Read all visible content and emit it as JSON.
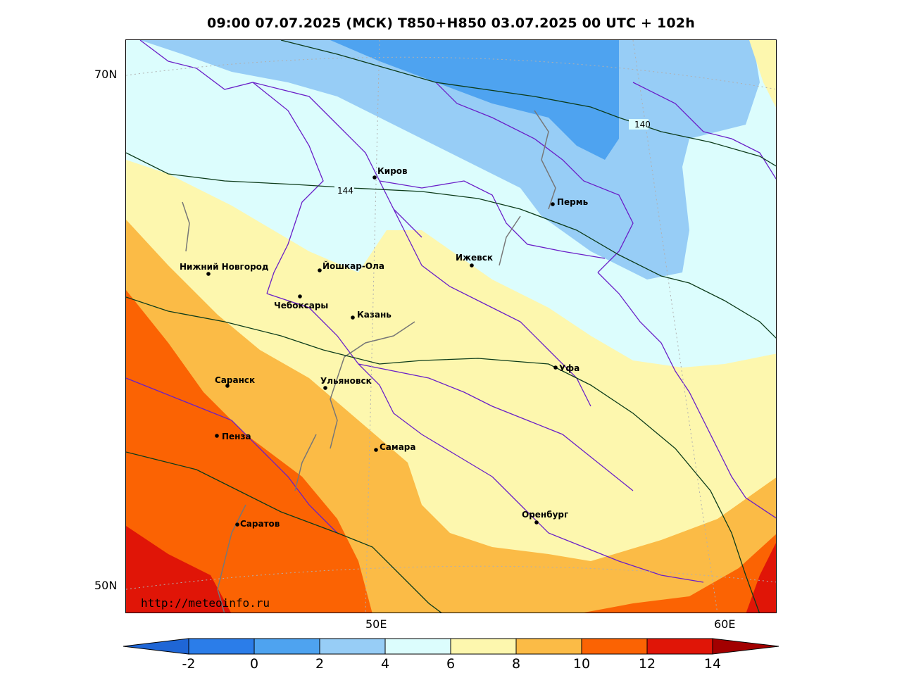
{
  "title": "09:00 07.07.2025 (МСК) T850+H850 03.07.2025 00 UTC + 102h",
  "axes": {
    "lat_labels": [
      "70N",
      "50N"
    ],
    "lon_labels": [
      "50E",
      "60E"
    ]
  },
  "cities": [
    {
      "name": "Киров"
    },
    {
      "name": "Пермь"
    },
    {
      "name": "Нижний Новгород"
    },
    {
      "name": "Йошкар-Ола"
    },
    {
      "name": "Ижевск"
    },
    {
      "name": "Чебоксары"
    },
    {
      "name": "Казань"
    },
    {
      "name": "Уфа"
    },
    {
      "name": "Саранск"
    },
    {
      "name": "Ульяновск"
    },
    {
      "name": "Пенза"
    },
    {
      "name": "Самара"
    },
    {
      "name": "Оренбург"
    },
    {
      "name": "Саратов"
    }
  ],
  "contours": {
    "labels": [
      "140",
      "144"
    ]
  },
  "watermark": "http://meteoinfo.ru",
  "legend": {
    "ticks": [
      "-2",
      "0",
      "2",
      "4",
      "6",
      "8",
      "10",
      "12",
      "14"
    ],
    "colors": [
      "#1f66d6",
      "#2b7de9",
      "#4ea3f0",
      "#97cdf6",
      "#dcfdfd",
      "#fdf7ae",
      "#fbbb46",
      "#fb6303",
      "#e01507",
      "#a20000"
    ]
  }
}
